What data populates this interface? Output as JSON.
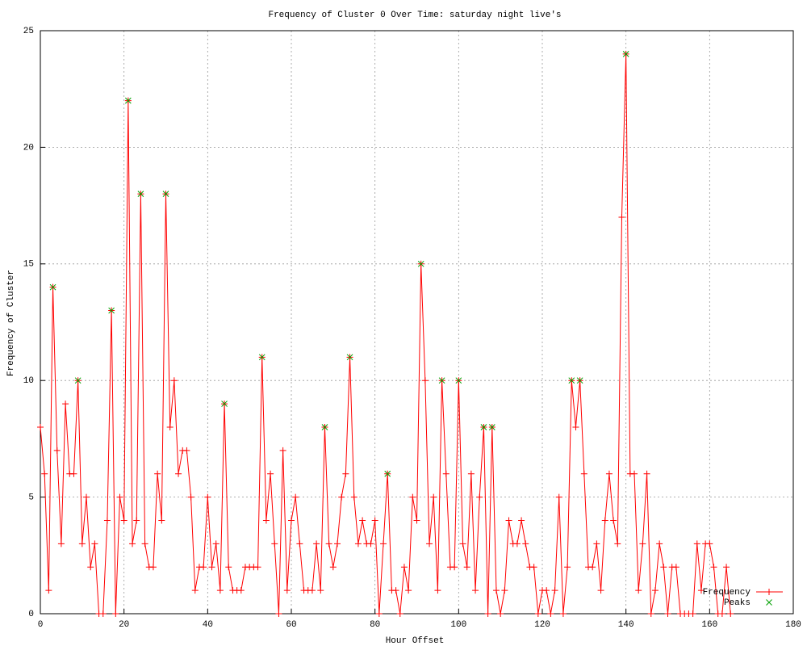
{
  "chart_data": {
    "type": "line",
    "title": "Frequency of Cluster 0 Over Time: saturday night live's",
    "x_label": "Hour Offset",
    "y_label": "Frequency of Cluster",
    "xlim": [
      0,
      180
    ],
    "xticks": [
      0,
      20,
      40,
      60,
      80,
      100,
      120,
      140,
      160,
      180
    ],
    "ylim": [
      0,
      25
    ],
    "yticks": [
      0,
      5,
      10,
      15,
      20,
      25
    ],
    "grid": true,
    "legend": "bottom-right",
    "series": [
      {
        "name": "Frequency",
        "color": "#ff0000",
        "marker": "plus",
        "x": [
          0,
          1,
          2,
          3,
          4,
          5,
          6,
          7,
          8,
          9,
          10,
          11,
          12,
          13,
          14,
          15,
          16,
          17,
          18,
          19,
          20,
          21,
          22,
          23,
          24,
          25,
          26,
          27,
          28,
          29,
          30,
          31,
          32,
          33,
          34,
          35,
          36,
          37,
          38,
          39,
          40,
          41,
          42,
          43,
          44,
          45,
          46,
          47,
          48,
          49,
          50,
          51,
          52,
          53,
          54,
          55,
          56,
          57,
          58,
          59,
          60,
          61,
          62,
          63,
          64,
          65,
          66,
          67,
          68,
          69,
          70,
          71,
          72,
          73,
          74,
          75,
          76,
          77,
          78,
          79,
          80,
          81,
          82,
          83,
          84,
          85,
          86,
          87,
          88,
          89,
          90,
          91,
          92,
          93,
          94,
          95,
          96,
          97,
          98,
          99,
          100,
          101,
          102,
          103,
          104,
          105,
          106,
          107,
          108,
          109,
          110,
          111,
          112,
          113,
          114,
          115,
          116,
          117,
          118,
          119,
          120,
          121,
          122,
          123,
          124,
          125,
          126,
          127,
          128,
          129,
          130,
          131,
          132,
          133,
          134,
          135,
          136,
          137,
          138,
          139,
          140,
          141,
          142,
          143,
          144,
          145,
          146,
          147,
          148,
          149,
          150,
          151,
          152,
          153,
          154,
          155,
          156,
          157,
          158,
          159,
          160,
          161,
          162,
          163,
          164,
          165
        ],
        "values": [
          8,
          6,
          1,
          14,
          7,
          3,
          9,
          6,
          6,
          10,
          3,
          5,
          2,
          3,
          0,
          0,
          4,
          13,
          0,
          5,
          4,
          22,
          3,
          4,
          18,
          3,
          2,
          2,
          6,
          4,
          18,
          8,
          10,
          6,
          7,
          7,
          5,
          1,
          2,
          2,
          5,
          2,
          3,
          1,
          9,
          2,
          1,
          1,
          1,
          2,
          2,
          2,
          2,
          11,
          4,
          6,
          3,
          0,
          7,
          1,
          4,
          5,
          3,
          1,
          1,
          1,
          3,
          1,
          8,
          3,
          2,
          3,
          5,
          6,
          11,
          5,
          3,
          4,
          3,
          3,
          4,
          0,
          3,
          6,
          1,
          1,
          0,
          2,
          1,
          5,
          4,
          15,
          10,
          3,
          5,
          1,
          10,
          6,
          2,
          2,
          10,
          3,
          2,
          6,
          1,
          5,
          8,
          0,
          8,
          1,
          0,
          1,
          4,
          3,
          3,
          4,
          3,
          2,
          2,
          0,
          1,
          1,
          0,
          1,
          5,
          0,
          2,
          10,
          8,
          10,
          6,
          2,
          2,
          3,
          1,
          4,
          6,
          4,
          3,
          17,
          24,
          6,
          6,
          1,
          3,
          6,
          0,
          1,
          3,
          2,
          0,
          2,
          2,
          0,
          0,
          0,
          0,
          3,
          1,
          3,
          3,
          2,
          0,
          0,
          2,
          0
        ]
      },
      {
        "name": "Peaks",
        "color": "#00a000",
        "marker": "cross",
        "x": [
          3,
          9,
          17,
          21,
          24,
          30,
          44,
          53,
          68,
          74,
          83,
          91,
          96,
          100,
          106,
          108,
          127,
          129,
          140
        ],
        "values": [
          14,
          10,
          13,
          22,
          18,
          18,
          9,
          11,
          8,
          11,
          6,
          15,
          10,
          10,
          8,
          8,
          10,
          10,
          24
        ]
      }
    ]
  }
}
